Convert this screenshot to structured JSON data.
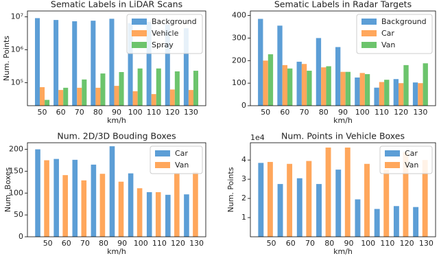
{
  "chart_data": [
    {
      "type": "bar",
      "title": "Sematic Labels in LiDAR Scans",
      "xlabel": "km/h",
      "ylabel": "Num. Points",
      "log": true,
      "legend": "upper right",
      "categories": [
        "50",
        "60",
        "70",
        "80",
        "90",
        "100",
        "110",
        "120",
        "130"
      ],
      "series": [
        {
          "name": "Background",
          "color": "#5c9ed6",
          "values": [
            9100000,
            8000000,
            7300000,
            7600000,
            8700000,
            6400000,
            7000000,
            5800000,
            4500000
          ]
        },
        {
          "name": "Vehicle",
          "color": "#ffa75c",
          "values": [
            73000,
            60000,
            70000,
            70000,
            80000,
            55000,
            45000,
            62000,
            60000
          ]
        },
        {
          "name": "Spray",
          "color": "#6cc46c",
          "values": [
            30000,
            70000,
            125000,
            190000,
            210000,
            270000,
            270000,
            220000,
            230000
          ]
        }
      ],
      "ylim": [
        20000,
        15000000
      ],
      "yticks": [
        {
          "value": 100000,
          "label": "10⁵"
        },
        {
          "value": 1000000,
          "label": "10⁶"
        },
        {
          "value": 10000000,
          "label": "10⁷"
        }
      ]
    },
    {
      "type": "bar",
      "title": "Sematic Labels in Radar Targets",
      "xlabel": "km/h",
      "log": false,
      "legend": "upper right",
      "categories": [
        "50",
        "60",
        "70",
        "80",
        "90",
        "100",
        "110",
        "120",
        "130"
      ],
      "series": [
        {
          "name": "Background",
          "color": "#5c9ed6",
          "values": [
            385,
            355,
            195,
            300,
            260,
            125,
            80,
            118,
            103
          ]
        },
        {
          "name": "Car",
          "color": "#ffa75c",
          "values": [
            200,
            180,
            185,
            170,
            150,
            145,
            105,
            100,
            100
          ]
        },
        {
          "name": "Van",
          "color": "#6cc46c",
          "values": [
            228,
            165,
            155,
            175,
            150,
            140,
            115,
            180,
            188
          ]
        }
      ],
      "ylim": [
        0,
        420
      ],
      "yticks": [
        0,
        100,
        200,
        300,
        400
      ]
    },
    {
      "type": "bar",
      "title": "Num. 2D/3D Bouding Boxes",
      "xlabel": "km/h",
      "ylabel": "Num. Boxes",
      "log": false,
      "legend": "upper right",
      "categories": [
        "50",
        "60",
        "70",
        "80",
        "90",
        "100",
        "110",
        "120",
        "130"
      ],
      "series": [
        {
          "name": "Car",
          "color": "#5c9ed6",
          "values": [
            200,
            178,
            176,
            165,
            207,
            145,
            102,
            96,
            97
          ]
        },
        {
          "name": "Van",
          "color": "#ffa75c",
          "values": [
            175,
            141,
            129,
            144,
            126,
            111,
            102,
            146,
            148
          ]
        }
      ],
      "ylim": [
        0,
        215
      ],
      "yticks": [
        0,
        50,
        100,
        150,
        200
      ]
    },
    {
      "type": "bar",
      "title": "Num. Points in Vehicle Boxes",
      "xlabel": "km/h",
      "ylabel": "Num. Points",
      "y_offset_label": "1e4",
      "log": false,
      "legend": "upper right",
      "categories": [
        "50",
        "60",
        "70",
        "80",
        "90",
        "100",
        "110",
        "120",
        "130"
      ],
      "series": [
        {
          "name": "Car",
          "color": "#5c9ed6",
          "values": [
            3.85,
            2.75,
            3.05,
            2.75,
            3.5,
            1.95,
            1.45,
            1.6,
            1.55
          ]
        },
        {
          "name": "Van",
          "color": "#ffa75c",
          "values": [
            3.9,
            3.8,
            3.95,
            4.65,
            4.65,
            3.8,
            3.5,
            4.4,
            4.0
          ]
        }
      ],
      "ylim": [
        0,
        4.9
      ],
      "yticks": [
        1,
        2,
        3,
        4
      ]
    }
  ]
}
